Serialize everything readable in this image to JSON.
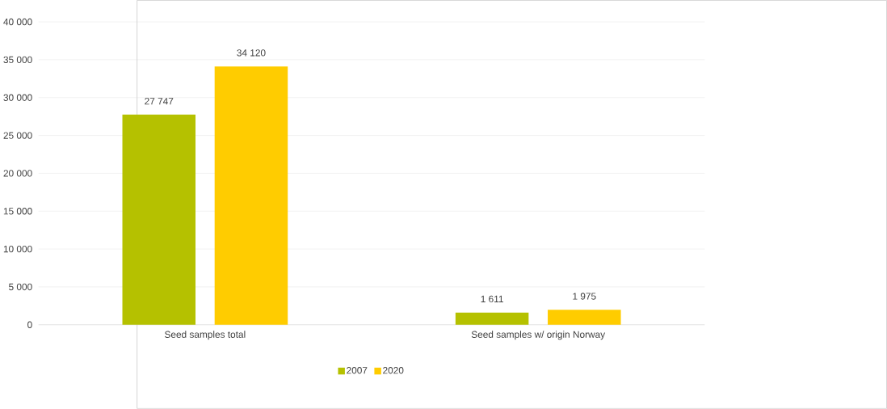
{
  "chart_data": {
    "type": "bar",
    "categories": [
      "Seed samples total",
      "Seed samples w/ origin Norway"
    ],
    "series": [
      {
        "name": "2007",
        "color": "#b5c100",
        "values": [
          27747,
          1611
        ],
        "value_labels": [
          "27 747",
          "1 611"
        ]
      },
      {
        "name": "2020",
        "color": "#ffcc00",
        "values": [
          34120,
          1975
        ],
        "value_labels": [
          "34 120",
          "1 975"
        ]
      }
    ],
    "ylim": [
      0,
      40000
    ],
    "yticks": [
      {
        "value": 0,
        "label": "0"
      },
      {
        "value": 5000,
        "label": "5 000"
      },
      {
        "value": 10000,
        "label": "10 000"
      },
      {
        "value": 15000,
        "label": "15 000"
      },
      {
        "value": 20000,
        "label": "20 000"
      },
      {
        "value": 25000,
        "label": "25 000"
      },
      {
        "value": 30000,
        "label": "30 000"
      },
      {
        "value": 35000,
        "label": "35 000"
      },
      {
        "value": 40000,
        "label": "40 000"
      }
    ],
    "grid": "y",
    "legend": "bottom"
  }
}
